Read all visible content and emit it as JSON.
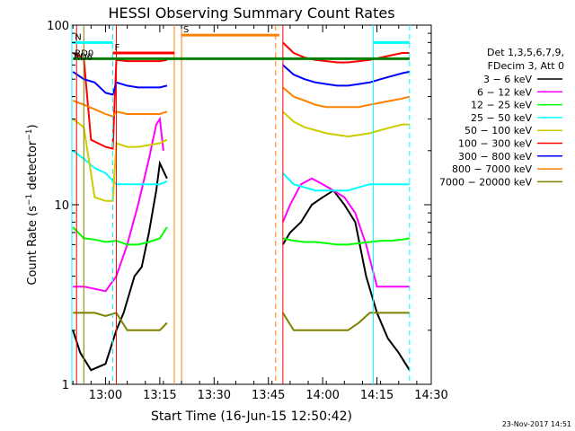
{
  "chart_data": {
    "type": "line",
    "title": "HESSI Observing Summary Count Rates",
    "xlabel": "Start Time (16-Jun-15 12:50:42)",
    "ylabel": "Count Rate (s⁻¹ detector⁻¹)",
    "ylabel_main": "Count Rate (s",
    "ylabel_sup1": "−1",
    "ylabel_mid": " detector",
    "ylabel_sup2": "−1",
    "ylabel_end": ")",
    "yscale": "log",
    "ylim": [
      1,
      100
    ],
    "xlim": [
      "12:50:42",
      "14:30:00"
    ],
    "x_ticks": [
      "13:00",
      "13:15",
      "13:30",
      "13:45",
      "14:00",
      "14:15",
      "14:30"
    ],
    "y_ticks": [
      "1",
      "10",
      "100"
    ],
    "footer_date": "23-Nov-2017 14:51",
    "legend": {
      "header_line1": "Det 1,3,5,6,7,9,",
      "header_line2": "FDecim 3, Att 0"
    },
    "series": [
      {
        "name": "3 − 6 keV",
        "color": "#000000",
        "data": [
          [
            "12:51",
            2
          ],
          [
            "12:53",
            1.5
          ],
          [
            "12:56",
            1.2
          ],
          [
            "13:00",
            1.3
          ],
          [
            "13:03",
            2.0
          ],
          [
            "13:05",
            2.5
          ],
          [
            "13:08",
            4
          ],
          [
            "13:10",
            4.5
          ],
          [
            "13:12",
            7
          ],
          [
            "13:14",
            12
          ],
          [
            "13:15",
            17
          ],
          [
            "13:17",
            14
          ],
          [
            "13:18",
            null
          ],
          [
            "13:48",
            null
          ],
          [
            "13:49",
            6
          ],
          [
            "13:51",
            7
          ],
          [
            "13:54",
            8
          ],
          [
            "13:57",
            10
          ],
          [
            "14:00",
            11
          ],
          [
            "14:03",
            12
          ],
          [
            "14:06",
            10
          ],
          [
            "14:09",
            8
          ],
          [
            "14:12",
            4
          ],
          [
            "14:15",
            2.5
          ],
          [
            "14:18",
            1.8
          ],
          [
            "14:21",
            1.5
          ],
          [
            "14:24",
            1.2
          ]
        ]
      },
      {
        "name": "6 − 12 keV",
        "color": "#ff00ff",
        "data": [
          [
            "12:51",
            3.5
          ],
          [
            "12:54",
            3.5
          ],
          [
            "12:57",
            3.4
          ],
          [
            "13:00",
            3.3
          ],
          [
            "13:03",
            4
          ],
          [
            "13:06",
            6
          ],
          [
            "13:09",
            10
          ],
          [
            "13:12",
            18
          ],
          [
            "13:14",
            28
          ],
          [
            "13:15",
            30
          ],
          [
            "13:16",
            20
          ],
          [
            "13:18",
            null
          ],
          [
            "13:48",
            null
          ],
          [
            "13:49",
            8
          ],
          [
            "13:51",
            10
          ],
          [
            "13:54",
            13
          ],
          [
            "13:57",
            14
          ],
          [
            "14:00",
            13
          ],
          [
            "14:03",
            12
          ],
          [
            "14:06",
            11
          ],
          [
            "14:09",
            9
          ],
          [
            "14:12",
            6
          ],
          [
            "14:15",
            3.5
          ],
          [
            "14:18",
            3.5
          ],
          [
            "14:21",
            3.5
          ],
          [
            "14:24",
            3.5
          ]
        ]
      },
      {
        "name": "12 − 25 keV",
        "color": "#00ff00",
        "data": [
          [
            "12:51",
            7.5
          ],
          [
            "12:54",
            6.5
          ],
          [
            "12:57",
            6.4
          ],
          [
            "13:00",
            6.2
          ],
          [
            "13:03",
            6.3
          ],
          [
            "13:06",
            6.0
          ],
          [
            "13:09",
            6.0
          ],
          [
            "13:12",
            6.2
          ],
          [
            "13:15",
            6.5
          ],
          [
            "13:17",
            7.5
          ],
          [
            "13:18",
            null
          ],
          [
            "13:48",
            null
          ],
          [
            "13:49",
            6.5
          ],
          [
            "13:52",
            6.3
          ],
          [
            "13:55",
            6.2
          ],
          [
            "13:58",
            6.2
          ],
          [
            "14:01",
            6.1
          ],
          [
            "14:04",
            6.0
          ],
          [
            "14:07",
            6.0
          ],
          [
            "14:10",
            6.1
          ],
          [
            "14:13",
            6.2
          ],
          [
            "14:16",
            6.3
          ],
          [
            "14:19",
            6.3
          ],
          [
            "14:22",
            6.4
          ],
          [
            "14:24",
            6.5
          ]
        ]
      },
      {
        "name": "25 − 50 keV",
        "color": "#00ffff",
        "data": [
          [
            "12:51",
            20
          ],
          [
            "12:54",
            18
          ],
          [
            "12:57",
            16
          ],
          [
            "13:00",
            15
          ],
          [
            "13:03",
            13
          ],
          [
            "13:06",
            13
          ],
          [
            "13:09",
            13
          ],
          [
            "13:12",
            13
          ],
          [
            "13:15",
            13
          ],
          [
            "13:17",
            13.5
          ],
          [
            "13:18",
            null
          ],
          [
            "13:48",
            null
          ],
          [
            "13:49",
            15
          ],
          [
            "13:52",
            13
          ],
          [
            "13:55",
            12.5
          ],
          [
            "13:58",
            12
          ],
          [
            "14:01",
            12
          ],
          [
            "14:04",
            12
          ],
          [
            "14:07",
            12
          ],
          [
            "14:10",
            12.5
          ],
          [
            "14:13",
            13
          ],
          [
            "14:16",
            13
          ],
          [
            "14:19",
            13
          ],
          [
            "14:22",
            13
          ],
          [
            "14:24",
            13
          ]
        ]
      },
      {
        "name": "50 − 100 keV",
        "color": "#cccc00",
        "data": [
          [
            "12:51",
            30
          ],
          [
            "12:54",
            27
          ],
          [
            "12:57",
            11
          ],
          [
            "13:00",
            10.5
          ],
          [
            "13:02",
            10.5
          ],
          [
            "13:03",
            22
          ],
          [
            "13:06",
            21
          ],
          [
            "13:09",
            21
          ],
          [
            "13:12",
            21.5
          ],
          [
            "13:15",
            22
          ],
          [
            "13:17",
            23
          ],
          [
            "13:18",
            null
          ],
          [
            "13:48",
            null
          ],
          [
            "13:49",
            33
          ],
          [
            "13:52",
            29
          ],
          [
            "13:55",
            27
          ],
          [
            "13:58",
            26
          ],
          [
            "14:01",
            25
          ],
          [
            "14:04",
            24.5
          ],
          [
            "14:07",
            24
          ],
          [
            "14:10",
            24.5
          ],
          [
            "14:13",
            25
          ],
          [
            "14:16",
            26
          ],
          [
            "14:19",
            27
          ],
          [
            "14:22",
            28
          ],
          [
            "14:24",
            28
          ]
        ]
      },
      {
        "name": "100 − 300 keV",
        "color": "#ff0000",
        "data": [
          [
            "12:51",
            70
          ],
          [
            "12:54",
            65
          ],
          [
            "12:56",
            23
          ],
          [
            "13:00",
            21
          ],
          [
            "13:02",
            20.5
          ],
          [
            "13:03",
            64
          ],
          [
            "13:06",
            63
          ],
          [
            "13:09",
            63
          ],
          [
            "13:12",
            63
          ],
          [
            "13:15",
            63
          ],
          [
            "13:17",
            64
          ],
          [
            "13:18",
            null
          ],
          [
            "13:48",
            null
          ],
          [
            "13:49",
            80
          ],
          [
            "13:52",
            70
          ],
          [
            "13:55",
            66
          ],
          [
            "13:58",
            64
          ],
          [
            "14:01",
            63
          ],
          [
            "14:04",
            62
          ],
          [
            "14:07",
            62
          ],
          [
            "14:10",
            63
          ],
          [
            "14:13",
            64
          ],
          [
            "14:16",
            66
          ],
          [
            "14:19",
            68
          ],
          [
            "14:22",
            70
          ],
          [
            "14:24",
            70
          ]
        ]
      },
      {
        "name": "300 − 800 keV",
        "color": "#0000ff",
        "data": [
          [
            "12:51",
            55
          ],
          [
            "12:54",
            50
          ],
          [
            "12:57",
            48
          ],
          [
            "13:00",
            42
          ],
          [
            "13:02",
            41
          ],
          [
            "13:03",
            48
          ],
          [
            "13:06",
            46
          ],
          [
            "13:09",
            45
          ],
          [
            "13:12",
            45
          ],
          [
            "13:15",
            45
          ],
          [
            "13:17",
            46
          ],
          [
            "13:18",
            null
          ],
          [
            "13:48",
            null
          ],
          [
            "13:49",
            60
          ],
          [
            "13:52",
            53
          ],
          [
            "13:55",
            50
          ],
          [
            "13:58",
            48
          ],
          [
            "14:01",
            47
          ],
          [
            "14:04",
            46
          ],
          [
            "14:07",
            46
          ],
          [
            "14:10",
            47
          ],
          [
            "14:13",
            48
          ],
          [
            "14:16",
            50
          ],
          [
            "14:19",
            52
          ],
          [
            "14:22",
            54
          ],
          [
            "14:24",
            55
          ]
        ]
      },
      {
        "name": "800 − 7000 keV",
        "color": "#ff8000",
        "data": [
          [
            "12:51",
            38
          ],
          [
            "12:54",
            36
          ],
          [
            "12:57",
            34
          ],
          [
            "13:00",
            32
          ],
          [
            "13:02",
            31
          ],
          [
            "13:03",
            33
          ],
          [
            "13:06",
            32
          ],
          [
            "13:09",
            32
          ],
          [
            "13:12",
            32
          ],
          [
            "13:15",
            32
          ],
          [
            "13:17",
            33
          ],
          [
            "13:18",
            null
          ],
          [
            "13:48",
            null
          ],
          [
            "13:49",
            45
          ],
          [
            "13:52",
            40
          ],
          [
            "13:55",
            38
          ],
          [
            "13:58",
            36
          ],
          [
            "14:01",
            35
          ],
          [
            "14:04",
            35
          ],
          [
            "14:07",
            35
          ],
          [
            "14:10",
            35
          ],
          [
            "14:13",
            36
          ],
          [
            "14:16",
            37
          ],
          [
            "14:19",
            38
          ],
          [
            "14:22",
            39
          ],
          [
            "14:24",
            40
          ]
        ]
      },
      {
        "name": "7000 − 20000 keV",
        "color": "#808000",
        "data": [
          [
            "12:51",
            2.5
          ],
          [
            "12:54",
            2.5
          ],
          [
            "12:57",
            2.5
          ],
          [
            "13:00",
            2.4
          ],
          [
            "13:03",
            2.5
          ],
          [
            "13:06",
            2.0
          ],
          [
            "13:09",
            2.0
          ],
          [
            "13:12",
            2.0
          ],
          [
            "13:15",
            2.0
          ],
          [
            "13:17",
            2.2
          ],
          [
            "13:18",
            null
          ],
          [
            "13:48",
            null
          ],
          [
            "13:49",
            2.5
          ],
          [
            "13:52",
            2.0
          ],
          [
            "13:55",
            2.0
          ],
          [
            "13:58",
            2.0
          ],
          [
            "14:01",
            2.0
          ],
          [
            "14:04",
            2.0
          ],
          [
            "14:07",
            2.0
          ],
          [
            "14:10",
            2.2
          ],
          [
            "14:13",
            2.5
          ],
          [
            "14:16",
            2.5
          ],
          [
            "14:19",
            2.5
          ],
          [
            "14:22",
            2.5
          ],
          [
            "14:24",
            2.5
          ]
        ]
      }
    ],
    "flags": [
      {
        "label": "N",
        "color": "#00ffff",
        "value": 80,
        "segments": [
          [
            "12:51",
            "13:02"
          ],
          [
            "14:14",
            "14:24"
          ]
        ]
      },
      {
        "label": "F",
        "color": "#ff0000",
        "value": 70,
        "segments": [
          [
            "13:02",
            "13:19"
          ]
        ]
      },
      {
        "label": "S",
        "color": "#ff8000",
        "value": 88,
        "segments": [
          [
            "13:21",
            "13:48"
          ]
        ]
      },
      {
        "label": "RD0",
        "color": "#008000",
        "value": 65,
        "segments": [
          [
            "12:51",
            "14:24"
          ]
        ]
      },
      {
        "label": "RD6",
        "color": "#008000",
        "value": 62,
        "segments": []
      }
    ],
    "vlines": [
      {
        "time": "12:50:42",
        "color": "#00ffff",
        "style": "solid"
      },
      {
        "time": "12:52",
        "color": "#ff0000",
        "style": "solid"
      },
      {
        "time": "12:54",
        "color": "#808000",
        "style": "solid"
      },
      {
        "time": "13:02",
        "color": "#00ffff",
        "style": "dashed"
      },
      {
        "time": "13:03",
        "color": "#ff0000",
        "style": "solid"
      },
      {
        "time": "13:19",
        "color": "#ff8000",
        "style": "solid"
      },
      {
        "time": "13:21",
        "color": "#ff8000",
        "style": "solid"
      },
      {
        "time": "13:47",
        "color": "#ff8000",
        "style": "dashed"
      },
      {
        "time": "13:49",
        "color": "#ff0000",
        "style": "solid"
      },
      {
        "time": "14:14",
        "color": "#00ffff",
        "style": "solid"
      },
      {
        "time": "14:24",
        "color": "#00ffff",
        "style": "dashed"
      }
    ]
  }
}
